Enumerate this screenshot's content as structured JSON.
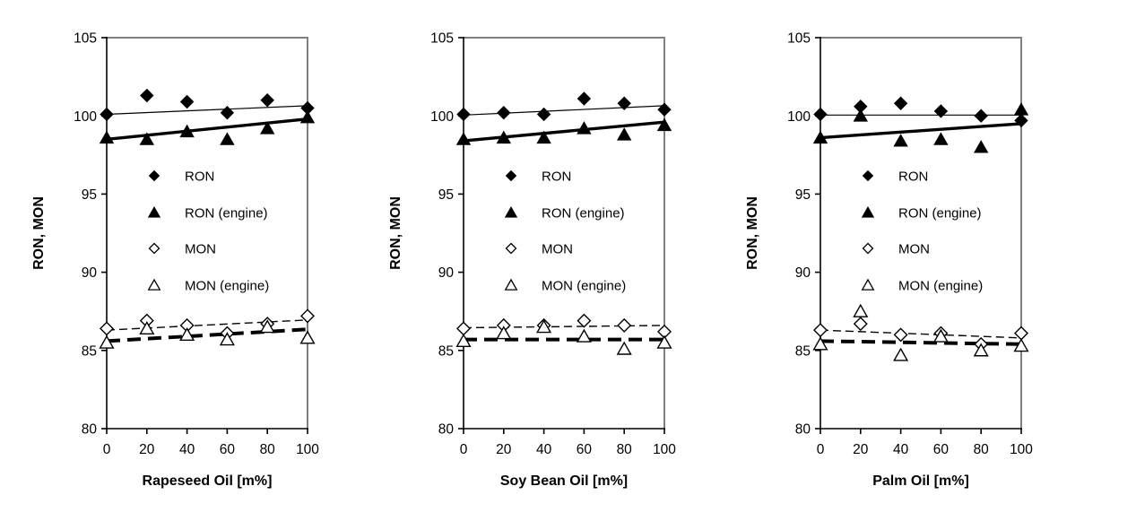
{
  "figure": {
    "background": "#ffffff",
    "ink_color": "#000000",
    "frame_gray": "#808080",
    "y_axis_title": "RON, MON",
    "legend_items": [
      {
        "label": "RON",
        "marker": "diamond-filled"
      },
      {
        "label": "RON (engine)",
        "marker": "triangle-filled"
      },
      {
        "label": "MON",
        "marker": "diamond-open"
      },
      {
        "label": "MON (engine)",
        "marker": "triangle-open"
      }
    ]
  },
  "chart_data": [
    {
      "type": "scatter",
      "title": "",
      "xlabel": "Rapeseed Oil [m%]",
      "ylabel": "RON, MON",
      "x": [
        0,
        20,
        40,
        60,
        80,
        100
      ],
      "xlim": [
        0,
        100
      ],
      "ylim": [
        80,
        105
      ],
      "xticks": [
        0,
        20,
        40,
        60,
        80,
        100
      ],
      "yticks": [
        105,
        100,
        95,
        90,
        85,
        80
      ],
      "grid": false,
      "legend_position": "inside-left-middle",
      "series": [
        {
          "name": "RON",
          "marker": "diamond-filled",
          "values": [
            100.1,
            101.3,
            100.9,
            100.2,
            101.0,
            100.5
          ],
          "trend": [
            100.1,
            100.65
          ],
          "trend_style": "solid-thin"
        },
        {
          "name": "RON (engine)",
          "marker": "triangle-filled",
          "values": [
            98.6,
            98.5,
            99.0,
            98.5,
            99.2,
            99.9
          ],
          "trend": [
            98.5,
            99.8
          ],
          "trend_style": "solid-thick"
        },
        {
          "name": "MON",
          "marker": "diamond-open",
          "values": [
            86.4,
            86.9,
            86.6,
            86.1,
            86.7,
            87.2
          ],
          "trend": [
            86.3,
            86.95
          ],
          "trend_style": "dashed-thin"
        },
        {
          "name": "MON (engine)",
          "marker": "triangle-open",
          "values": [
            85.5,
            86.4,
            86.0,
            85.7,
            86.5,
            85.8
          ],
          "trend": [
            85.6,
            86.35
          ],
          "trend_style": "dashed-thick"
        }
      ]
    },
    {
      "type": "scatter",
      "title": "",
      "xlabel": "Soy Bean Oil [m%]",
      "ylabel": "RON, MON",
      "x": [
        0,
        20,
        40,
        60,
        80,
        100
      ],
      "xlim": [
        0,
        100
      ],
      "ylim": [
        80,
        105
      ],
      "xticks": [
        0,
        20,
        40,
        60,
        80,
        100
      ],
      "yticks": [
        105,
        100,
        95,
        90,
        85,
        80
      ],
      "grid": false,
      "legend_position": "inside-left-middle",
      "series": [
        {
          "name": "RON",
          "marker": "diamond-filled",
          "values": [
            100.1,
            100.2,
            100.1,
            101.1,
            100.8,
            100.4
          ],
          "trend": [
            100.05,
            100.65
          ],
          "trend_style": "solid-thin"
        },
        {
          "name": "RON (engine)",
          "marker": "triangle-filled",
          "values": [
            98.5,
            98.6,
            98.6,
            99.2,
            98.8,
            99.4
          ],
          "trend": [
            98.4,
            99.6
          ],
          "trend_style": "solid-thick"
        },
        {
          "name": "MON",
          "marker": "diamond-open",
          "values": [
            86.4,
            86.6,
            86.6,
            86.9,
            86.6,
            86.2
          ],
          "trend": [
            86.45,
            86.6
          ],
          "trend_style": "dashed-thin"
        },
        {
          "name": "MON (engine)",
          "marker": "triangle-open",
          "values": [
            85.6,
            86.1,
            86.5,
            85.9,
            85.1,
            85.5
          ],
          "trend": [
            85.7,
            85.7
          ],
          "trend_style": "dashed-thick"
        }
      ]
    },
    {
      "type": "scatter",
      "title": "",
      "xlabel": "Palm Oil [m%]",
      "ylabel": "RON, MON",
      "x": [
        0,
        20,
        40,
        60,
        80,
        100
      ],
      "xlim": [
        0,
        100
      ],
      "ylim": [
        80,
        105
      ],
      "xticks": [
        0,
        20,
        40,
        60,
        80,
        100
      ],
      "yticks": [
        105,
        100,
        95,
        90,
        85,
        80
      ],
      "grid": false,
      "legend_position": "inside-left-middle",
      "series": [
        {
          "name": "RON",
          "marker": "diamond-filled",
          "values": [
            100.1,
            100.6,
            100.8,
            100.3,
            100.0,
            99.7
          ],
          "trend": [
            100.05,
            100.05
          ],
          "trend_style": "solid-thin"
        },
        {
          "name": "RON (engine)",
          "marker": "triangle-filled",
          "values": [
            98.6,
            100.0,
            98.4,
            98.5,
            98.0,
            100.4
          ],
          "trend": [
            98.6,
            99.5
          ],
          "trend_style": "solid-thick"
        },
        {
          "name": "MON",
          "marker": "diamond-open",
          "values": [
            86.3,
            86.7,
            86.0,
            86.1,
            85.4,
            86.1
          ],
          "trend": [
            86.3,
            85.8
          ],
          "trend_style": "dashed-thin"
        },
        {
          "name": "MON (engine)",
          "marker": "triangle-open",
          "values": [
            85.4,
            87.5,
            84.7,
            85.9,
            85.0,
            85.3
          ],
          "trend": [
            85.6,
            85.4
          ],
          "trend_style": "dashed-thick"
        }
      ]
    }
  ]
}
